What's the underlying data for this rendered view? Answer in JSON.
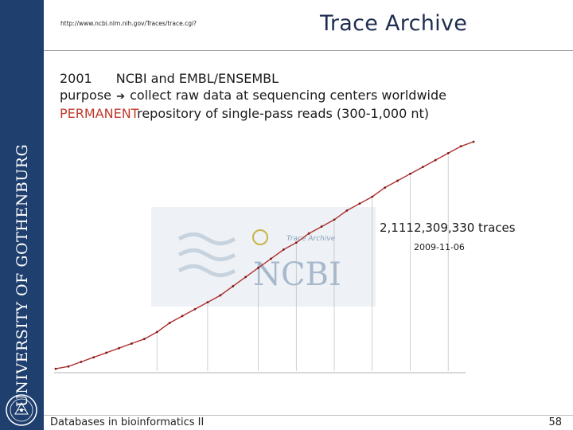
{
  "header": {
    "url": "http://www.ncbi.nlm.nih.gov/Traces/trace.cgi?",
    "title": "Trace Archive"
  },
  "sidebar": {
    "university": "UNIVERSITY OF GOTHENBURG"
  },
  "bullets": {
    "line1_year": "2001",
    "line1_text": "NCBI and EMBL/ENSEMBL",
    "line2_prefix": "purpose",
    "line2_arrow": "➔",
    "line2_text": "collect raw data at sequencing centers worldwide",
    "line3_emphasis": "PERMANENT",
    "line3_text": "repository of single-pass reads (300-1,000 nt)"
  },
  "chart_data": {
    "type": "line",
    "title": "",
    "xlabel": "",
    "ylabel": "",
    "x_tick_labels": [
      "",
      "",
      "",
      "",
      "",
      "",
      "",
      "",
      "",
      "",
      "",
      "",
      "",
      "",
      "",
      "",
      "",
      "",
      ""
    ],
    "series": [
      {
        "values": [
          0.01,
          0.02,
          0.04,
          0.06,
          0.08,
          0.1,
          0.12,
          0.14,
          0.17,
          0.21,
          0.24,
          0.27,
          0.3,
          0.33,
          0.37,
          0.41,
          0.45,
          0.49,
          0.53,
          0.56,
          0.6,
          0.63,
          0.66,
          0.7,
          0.73,
          0.76,
          0.8,
          0.83,
          0.86,
          0.89,
          0.92,
          0.95,
          0.98,
          1.0
        ]
      }
    ],
    "point_labels": [
      "",
      "",
      "",
      "",
      "",
      "",
      "",
      "",
      "",
      "",
      "",
      "",
      "",
      "",
      "",
      "",
      "",
      ""
    ],
    "grid": false,
    "colors": {
      "line": "#b03030",
      "marker": "#7a1a1a",
      "guide": "#bbbbbb"
    },
    "callout": {
      "count": "2,1112,309,330 traces",
      "date": "2009-11-06"
    },
    "watermark": {
      "brand": "NCBI",
      "product": "Trace Archive"
    }
  },
  "footer": {
    "course": "Databases in bioinformatics II",
    "page_number": "58"
  }
}
